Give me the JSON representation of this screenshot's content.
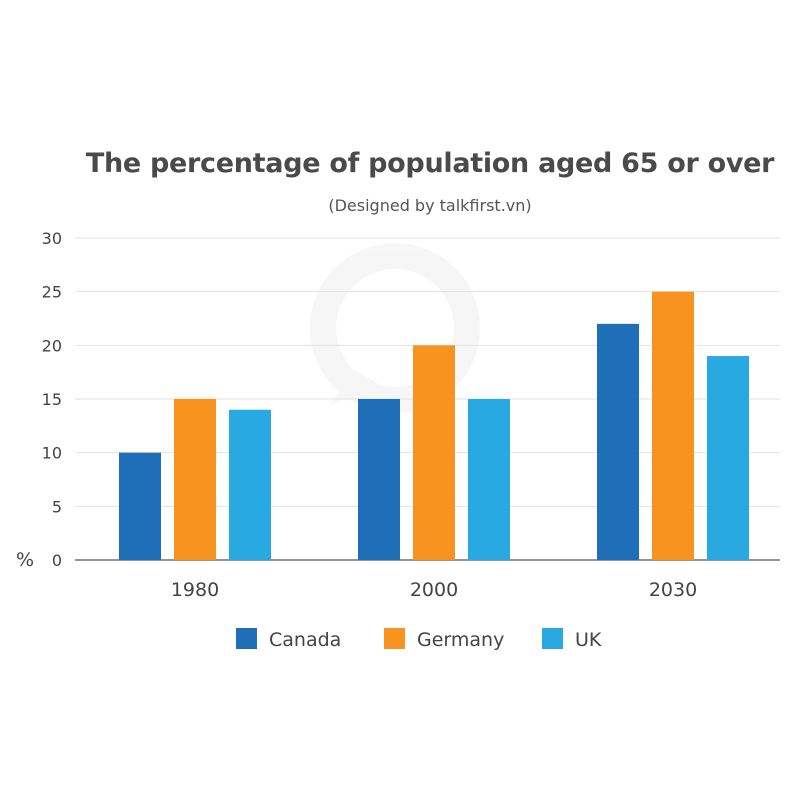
{
  "chart_data": {
    "type": "bar",
    "title": "The percentage of population aged 65 or over",
    "subtitle": "(Designed by talkfirst.vn)",
    "categories": [
      "1980",
      "2000",
      "2030"
    ],
    "series": [
      {
        "name": "Canada",
        "color": "#1f6fb8",
        "values": [
          10,
          15,
          22
        ]
      },
      {
        "name": "Germany",
        "color": "#f7931e",
        "values": [
          15,
          20,
          25
        ]
      },
      {
        "name": "UK",
        "color": "#29a9e1",
        "values": [
          14,
          15,
          19
        ]
      }
    ],
    "ylabel": "%",
    "xlabel": "",
    "ylim": [
      0,
      30
    ],
    "yticks": [
      "0",
      "5",
      "10",
      "15",
      "20",
      "25",
      "30"
    ],
    "ytick_values": [
      0,
      5,
      10,
      15,
      20,
      25,
      30
    ],
    "grid": true,
    "legend_position": "bottom"
  }
}
